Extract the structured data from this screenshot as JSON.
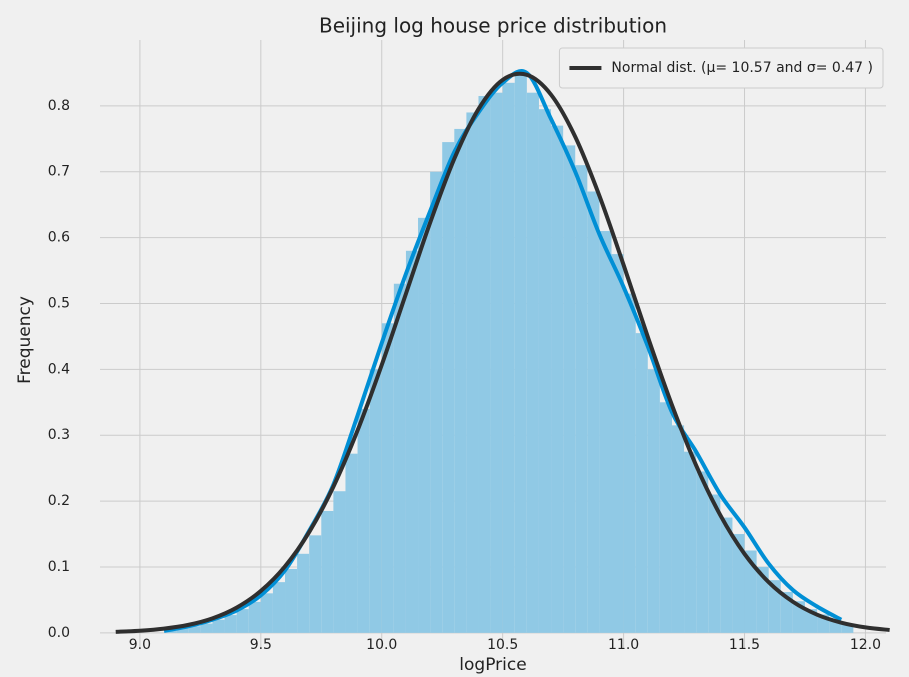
{
  "chart_data": {
    "type": "histogram",
    "title": "Beijing log house price distribution",
    "xlabel": "logPrice",
    "ylabel": "Frequency",
    "bins": [
      9.1,
      9.15,
      9.2,
      9.25,
      9.3,
      9.35,
      9.4,
      9.45,
      9.5,
      9.55,
      9.6,
      9.65,
      9.7,
      9.75,
      9.8,
      9.85,
      9.9,
      9.95,
      10.0,
      10.05,
      10.1,
      10.15,
      10.2,
      10.25,
      10.3,
      10.35,
      10.4,
      10.45,
      10.5,
      10.55,
      10.6,
      10.65,
      10.7,
      10.75,
      10.8,
      10.85,
      10.9,
      10.95,
      11.0,
      11.05,
      11.1,
      11.15,
      11.2,
      11.25,
      11.3,
      11.35,
      11.4,
      11.45,
      11.5,
      11.55,
      11.6,
      11.65,
      11.7,
      11.75,
      11.8,
      11.85,
      11.9,
      11.95
    ],
    "values": [
      0.004,
      0.007,
      0.01,
      0.014,
      0.02,
      0.027,
      0.036,
      0.047,
      0.06,
      0.077,
      0.097,
      0.12,
      0.148,
      0.185,
      0.215,
      0.272,
      0.34,
      0.4,
      0.47,
      0.53,
      0.58,
      0.63,
      0.7,
      0.745,
      0.765,
      0.79,
      0.815,
      0.82,
      0.835,
      0.85,
      0.82,
      0.795,
      0.77,
      0.74,
      0.71,
      0.67,
      0.61,
      0.575,
      0.515,
      0.455,
      0.4,
      0.35,
      0.315,
      0.275,
      0.245,
      0.21,
      0.175,
      0.15,
      0.125,
      0.1,
      0.08,
      0.062,
      0.048,
      0.036,
      0.028,
      0.02,
      0.014
    ],
    "color": "#90c9e5",
    "lines": [
      {
        "color": "#008fd5",
        "x": [
          9.1,
          9.2,
          9.3,
          9.4,
          9.5,
          9.6,
          9.7,
          9.8,
          9.9,
          10.0,
          10.1,
          10.2,
          10.3,
          10.4,
          10.5,
          10.6,
          10.7,
          10.8,
          10.9,
          11.0,
          11.1,
          11.2,
          11.3,
          11.4,
          11.5,
          11.6,
          11.7,
          11.8,
          11.9
        ],
        "values": [
          0.003,
          0.01,
          0.02,
          0.034,
          0.057,
          0.095,
          0.155,
          0.225,
          0.33,
          0.44,
          0.545,
          0.64,
          0.73,
          0.79,
          0.835,
          0.85,
          0.78,
          0.7,
          0.605,
          0.525,
          0.435,
          0.335,
          0.275,
          0.21,
          0.16,
          0.105,
          0.065,
          0.04,
          0.02
        ]
      },
      {
        "name": "Normal dist. (μ=  10.57 and σ=  0.47 )",
        "color": "#2f2f2f",
        "x": [
          8.9,
          9.0,
          9.1,
          9.2,
          9.3,
          9.4,
          9.5,
          9.6,
          9.7,
          9.8,
          9.9,
          10.0,
          10.1,
          10.2,
          10.3,
          10.4,
          10.5,
          10.6,
          10.7,
          10.8,
          10.9,
          11.0,
          11.1,
          11.2,
          11.3,
          11.4,
          11.5,
          11.6,
          11.7,
          11.8,
          11.9,
          12.0,
          12.1
        ],
        "values": [
          0.0015,
          0.0032,
          0.0064,
          0.0121,
          0.022,
          0.0383,
          0.0636,
          0.1009,
          0.153,
          0.2218,
          0.3073,
          0.4068,
          0.5148,
          0.6226,
          0.7197,
          0.7951,
          0.8395,
          0.8471,
          0.817,
          0.7531,
          0.6634,
          0.5585,
          0.4494,
          0.3458,
          0.2542,
          0.1786,
          0.1198,
          0.0769,
          0.0472,
          0.0276,
          0.0155,
          0.0083,
          0.0043
        ]
      }
    ],
    "xlim": [
      8.835,
      12.085
    ],
    "ylim": [
      -0.023,
      0.9
    ],
    "xticks": [
      {
        "value": 9,
        "label": "9.0"
      },
      9.5,
      {
        "value": 10,
        "label": "10.0"
      },
      10.5,
      {
        "value": 11,
        "label": "11.0"
      },
      11.5,
      {
        "value": 12,
        "label": "12.0"
      }
    ],
    "yticks": [
      {
        "value": 0,
        "label": "0.0"
      },
      0.1,
      0.2,
      0.3,
      0.4,
      0.5,
      0.6,
      0.7,
      0.8
    ],
    "grid": true,
    "legend": "upper right"
  }
}
